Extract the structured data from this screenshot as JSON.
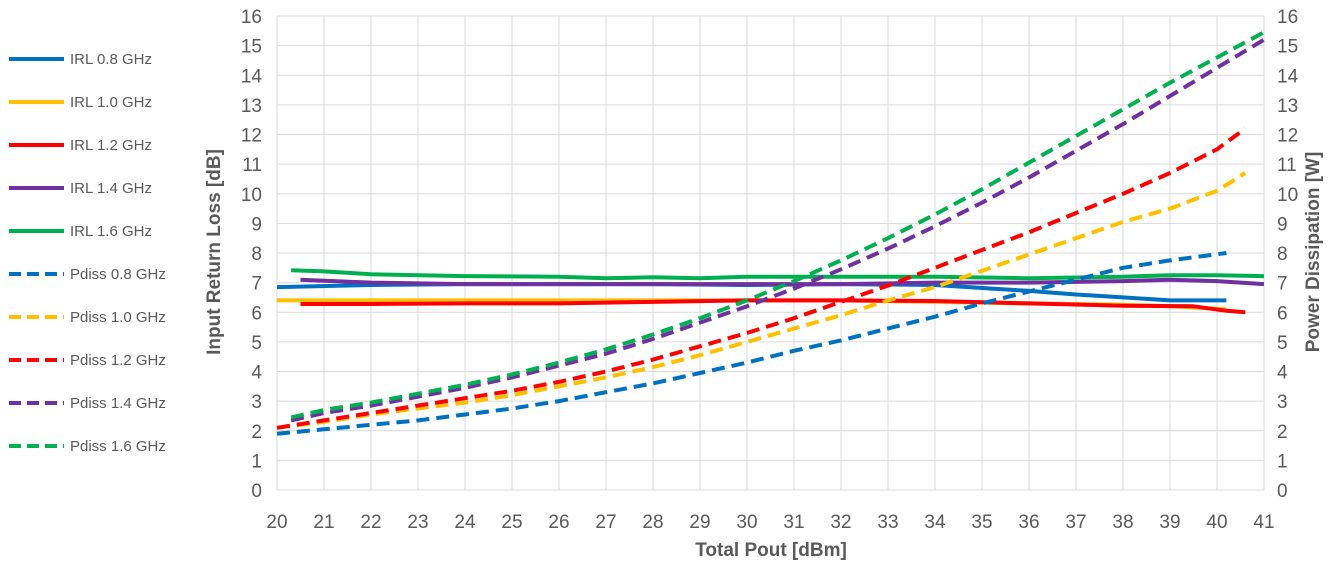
{
  "chart_data": {
    "type": "line",
    "xlabel": "Total Pout [dBm]",
    "ylabel": "Input Return Loss [dB]",
    "y2label": "Power Dissipation [W]",
    "xlim": [
      20,
      41
    ],
    "ylim": [
      0,
      16
    ],
    "y2lim": [
      0,
      16
    ],
    "x_ticks": [
      "20",
      "21",
      "22",
      "23",
      "24",
      "25",
      "26",
      "27",
      "28",
      "29",
      "30",
      "31",
      "32",
      "33",
      "34",
      "35",
      "36",
      "37",
      "38",
      "39",
      "40",
      "41"
    ],
    "y_ticks": [
      "0",
      "1",
      "2",
      "3",
      "4",
      "5",
      "6",
      "7",
      "8",
      "9",
      "10",
      "11",
      "12",
      "13",
      "14",
      "15",
      "16"
    ],
    "y2_ticks": [
      "0",
      "1",
      "2",
      "3",
      "4",
      "5",
      "6",
      "7",
      "8",
      "9",
      "10",
      "11",
      "12",
      "13",
      "14",
      "15",
      "16"
    ],
    "grid": true,
    "legend_position": "left",
    "series": [
      {
        "name": "IRL 0.8 GHz",
        "color": "#0070C0",
        "dash": false,
        "axis": "left",
        "x": [
          20,
          22,
          24,
          26,
          28,
          30,
          32,
          34,
          35,
          36,
          37,
          38,
          39,
          40.2
        ],
        "y": [
          6.85,
          6.92,
          6.95,
          6.95,
          6.95,
          6.92,
          6.95,
          6.92,
          6.82,
          6.72,
          6.6,
          6.5,
          6.4,
          6.4
        ]
      },
      {
        "name": "IRL 1.0 GHz",
        "color": "#FFC000",
        "dash": false,
        "axis": "left",
        "x": [
          20,
          22,
          24,
          26,
          28,
          30,
          32,
          34,
          36,
          38,
          39,
          40.2
        ],
        "y": [
          6.4,
          6.4,
          6.4,
          6.4,
          6.4,
          6.4,
          6.4,
          6.35,
          6.3,
          6.25,
          6.2,
          6.1
        ]
      },
      {
        "name": "IRL 1.2 GHz",
        "color": "#FF0000",
        "dash": false,
        "axis": "left",
        "x": [
          20.5,
          22,
          24,
          26,
          28,
          30,
          32,
          34,
          36,
          38,
          39.5,
          40.2,
          40.6
        ],
        "y": [
          6.28,
          6.28,
          6.3,
          6.3,
          6.35,
          6.4,
          6.4,
          6.38,
          6.3,
          6.22,
          6.2,
          6.05,
          6.0
        ]
      },
      {
        "name": "IRL 1.4 GHz",
        "color": "#7030A0",
        "dash": false,
        "axis": "left",
        "x": [
          20.5,
          22,
          24,
          26,
          28,
          30,
          32,
          34,
          36,
          38,
          39,
          40,
          41
        ],
        "y": [
          7.1,
          7.0,
          6.95,
          6.95,
          6.95,
          6.95,
          6.95,
          7.0,
          7.0,
          7.05,
          7.1,
          7.05,
          6.95
        ]
      },
      {
        "name": "IRL 1.6 GHz",
        "color": "#00B050",
        "dash": false,
        "axis": "left",
        "x": [
          20.3,
          21,
          22,
          24,
          26,
          27,
          28,
          29,
          30,
          32,
          34,
          36,
          38,
          39,
          40,
          41
        ],
        "y": [
          7.42,
          7.38,
          7.28,
          7.22,
          7.2,
          7.15,
          7.18,
          7.15,
          7.2,
          7.2,
          7.2,
          7.15,
          7.2,
          7.25,
          7.25,
          7.22
        ]
      },
      {
        "name": "Pdiss 0.8 GHz",
        "color": "#0070C0",
        "dash": true,
        "axis": "right",
        "x": [
          20,
          21,
          22,
          23,
          24,
          25,
          26,
          27,
          28,
          29,
          30,
          31,
          32,
          33,
          34,
          35,
          36,
          37,
          38,
          39,
          40.2
        ],
        "y": [
          1.9,
          2.05,
          2.2,
          2.35,
          2.55,
          2.75,
          3.0,
          3.3,
          3.6,
          3.95,
          4.3,
          4.7,
          5.05,
          5.45,
          5.85,
          6.3,
          6.7,
          7.1,
          7.5,
          7.75,
          8.0
        ]
      },
      {
        "name": "Pdiss 1.0 GHz",
        "color": "#FFC000",
        "dash": true,
        "axis": "right",
        "x": [
          20,
          21,
          22,
          23,
          24,
          25,
          26,
          27,
          28,
          29,
          30,
          31,
          32,
          33,
          34,
          35,
          36,
          37,
          38,
          39,
          40,
          40.6
        ],
        "y": [
          2.1,
          2.3,
          2.55,
          2.75,
          2.95,
          3.2,
          3.5,
          3.8,
          4.15,
          4.55,
          5.0,
          5.45,
          5.9,
          6.4,
          6.85,
          7.4,
          7.95,
          8.5,
          9.05,
          9.5,
          10.1,
          10.7
        ]
      },
      {
        "name": "Pdiss 1.2 GHz",
        "color": "#FF0000",
        "dash": true,
        "axis": "right",
        "x": [
          20,
          21,
          22,
          23,
          24,
          25,
          26,
          27,
          28,
          29,
          30,
          31,
          32,
          33,
          34,
          35,
          36,
          37,
          38,
          39,
          40,
          40.6
        ],
        "y": [
          2.1,
          2.35,
          2.6,
          2.85,
          3.1,
          3.35,
          3.65,
          4.0,
          4.4,
          4.85,
          5.3,
          5.8,
          6.35,
          6.9,
          7.5,
          8.1,
          8.7,
          9.35,
          10.0,
          10.7,
          11.5,
          12.2
        ]
      },
      {
        "name": "Pdiss 1.4 GHz",
        "color": "#7030A0",
        "dash": true,
        "axis": "right",
        "x": [
          20.3,
          21,
          22,
          23,
          24,
          25,
          26,
          27,
          28,
          29,
          30,
          31,
          32,
          33,
          34,
          35,
          36,
          37,
          38,
          39,
          40,
          41
        ],
        "y": [
          2.35,
          2.6,
          2.85,
          3.15,
          3.45,
          3.8,
          4.2,
          4.6,
          5.1,
          5.65,
          6.2,
          6.8,
          7.45,
          8.15,
          8.9,
          9.7,
          10.55,
          11.45,
          12.35,
          13.3,
          14.25,
          15.2
        ]
      },
      {
        "name": "Pdiss 1.6 GHz",
        "color": "#00B050",
        "dash": true,
        "axis": "right",
        "x": [
          20.3,
          21,
          22,
          23,
          24,
          25,
          26,
          27,
          28,
          29,
          30,
          31,
          32,
          33,
          34,
          35,
          36,
          37,
          38,
          39,
          40,
          41
        ],
        "y": [
          2.45,
          2.7,
          2.95,
          3.25,
          3.55,
          3.9,
          4.3,
          4.75,
          5.25,
          5.8,
          6.4,
          7.05,
          7.75,
          8.5,
          9.3,
          10.15,
          11.05,
          11.95,
          12.85,
          13.75,
          14.6,
          15.45
        ]
      }
    ]
  }
}
